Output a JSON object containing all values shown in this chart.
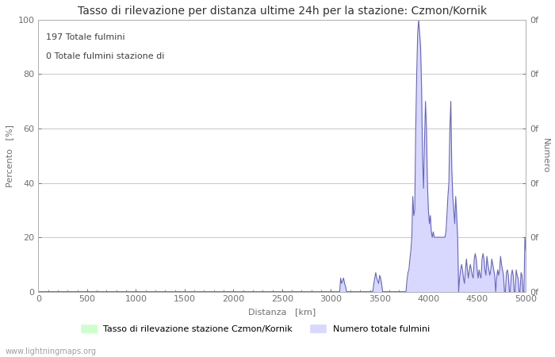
{
  "title": "Tasso di rilevazione per distanza ultime 24h per la stazione: Czmon/Kornik",
  "xlabel": "Distanza   [km]",
  "ylabel_left": "Percento   [%]",
  "ylabel_right": "Numero",
  "annotation_lines": [
    "197 Totale fulmini",
    "0 Totale fulmini stazione di"
  ],
  "xlim": [
    0,
    5000
  ],
  "ylim_left": [
    0,
    100
  ],
  "xticks": [
    0,
    500,
    1000,
    1500,
    2000,
    2500,
    3000,
    3500,
    4000,
    4500,
    5000
  ],
  "yticks_left": [
    0,
    20,
    40,
    60,
    80,
    100
  ],
  "background_color": "#ffffff",
  "grid_color": "#c8c8c8",
  "fill_color_blue": "#d8d8ff",
  "line_color_blue": "#6666bb",
  "fill_color_green": "#ccffcc",
  "legend_label_green": "Tasso di rilevazione stazione Czmon/Kornik",
  "legend_label_blue": "Numero totale fulmini",
  "watermark": "www.lightningmaps.org",
  "title_fontsize": 10,
  "axis_fontsize": 8,
  "tick_fontsize": 8,
  "annotation_fontsize": 8
}
